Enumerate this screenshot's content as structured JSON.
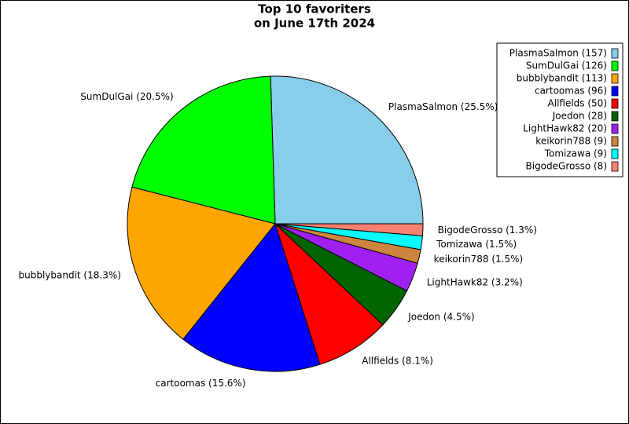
{
  "chart_data": {
    "type": "pie",
    "title": [
      "Top 10 favoriters",
      "on June 17th 2024"
    ],
    "categories": [
      "PlasmaSalmon (157)",
      "SumDulGai (126)",
      "bubblybandit (113)",
      "cartoomas (96)",
      "Allfields (50)",
      "Joedon (28)",
      "LightHawk82 (20)",
      "keikorin788 (9)",
      "Tomizawa (9)",
      "BigodeGrosso (8)"
    ],
    "values": [
      25.5,
      20.5,
      18.3,
      15.6,
      8.1,
      4.5,
      3.2,
      1.5,
      1.5,
      1.3
    ],
    "value_labels": [
      "PlasmaSalmon (25.5%)",
      "SumDulGai (20.5%)",
      "bubblybandit (18.3%)",
      "cartoomas (15.6%)",
      "Allfields (8.1%)",
      "Joedon (4.5%)",
      "LightHawk82 (3.2%)",
      "keikorin788 (1.5%)",
      "Tomizawa (1.5%)",
      "BigodeGrosso (1.3%)"
    ],
    "colors": [
      "#87ceeb",
      "#00ff00",
      "#ffa500",
      "#0000ff",
      "#ff0000",
      "#006400",
      "#a020f0",
      "#cd853f",
      "#00ffff",
      "#fa8072"
    ],
    "legend": "upper right"
  }
}
